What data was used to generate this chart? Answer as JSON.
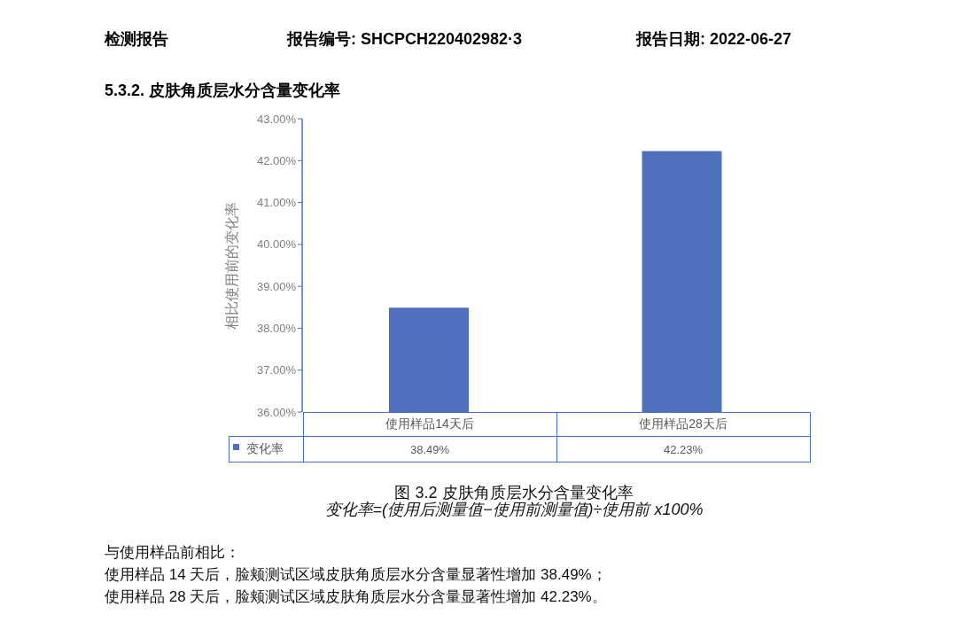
{
  "chart_data": {
    "type": "bar",
    "title": "5.3.2.    皮肤角质层水分含量变化率",
    "ylabel": "相比使用前的变化率",
    "categories": [
      "使用样品14天后",
      "使用样品28天后"
    ],
    "series": [
      {
        "name": "变化率",
        "color": "#4e70be",
        "values": [
          38.49,
          42.23
        ],
        "value_labels": [
          "38.49%",
          "42.23%"
        ]
      }
    ],
    "ylim": [
      36,
      43
    ],
    "yticks": [
      {
        "value": 36,
        "label": "36.00%"
      },
      {
        "value": 37,
        "label": "37.00%"
      },
      {
        "value": 38,
        "label": "38.00%"
      },
      {
        "value": 39,
        "label": "39.00%"
      },
      {
        "value": 40,
        "label": "40.00%"
      },
      {
        "value": 41,
        "label": "41.00%"
      },
      {
        "value": 42,
        "label": "42.00%"
      },
      {
        "value": 43,
        "label": "43.00%"
      }
    ],
    "grid": false,
    "legend": "bottom left",
    "annotations": [
      "检测报告",
      "报告编号: SHCPCH220402982·3",
      "报告日期: 2022-06-27",
      "图 3.2 皮肤角质层水分含量变化率",
      "变化率=(使用后测量值−使用前测量值)÷使用前 x100%",
      "与使用样品前相比：",
      "使用样品 14 天后，脸颊测试区域皮肤角质层水分含量显著性增加 38.49%；",
      "使用样品 28 天后，脸颊测试区域皮肤角质层水分含量显著性增加 42.23%。"
    ]
  }
}
